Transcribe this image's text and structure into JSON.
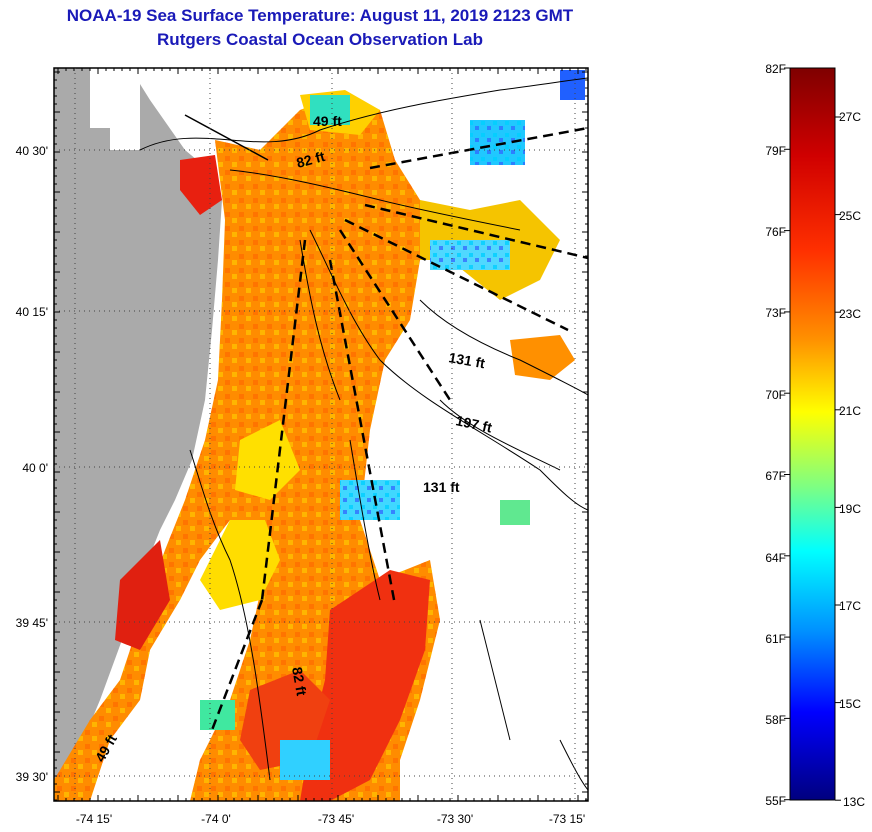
{
  "header": {
    "title": "NOAA-19 Sea Surface Temperature:  August 11, 2019 2123 GMT",
    "subtitle": "Rutgers Coastal Ocean Observation Lab"
  },
  "map": {
    "y_ticks": [
      "40 30'",
      "40 15'",
      "40 0'",
      "39 45'",
      "39 30'"
    ],
    "x_ticks": [
      "-74 15'",
      "-74 0'",
      "-73 45'",
      "-73 30'",
      "-73 15'"
    ],
    "depth_labels": [
      "49 ft",
      "82 ft",
      "131 ft",
      "197 ft",
      "131 ft",
      "82 ft",
      "49 ft"
    ]
  },
  "colorbar": {
    "f_labels": [
      "82F",
      "79F",
      "76F",
      "73F",
      "70F",
      "67F",
      "64F",
      "61F",
      "58F",
      "55F"
    ],
    "c_labels": [
      "27C",
      "25C",
      "23C",
      "21C",
      "19C",
      "17C",
      "15C",
      "13C"
    ],
    "colors": [
      "#7f0000",
      "#ff0000",
      "#ff8000",
      "#ffff00",
      "#80ff80",
      "#00ffff",
      "#0080ff",
      "#0000ff",
      "#00007f"
    ]
  }
}
